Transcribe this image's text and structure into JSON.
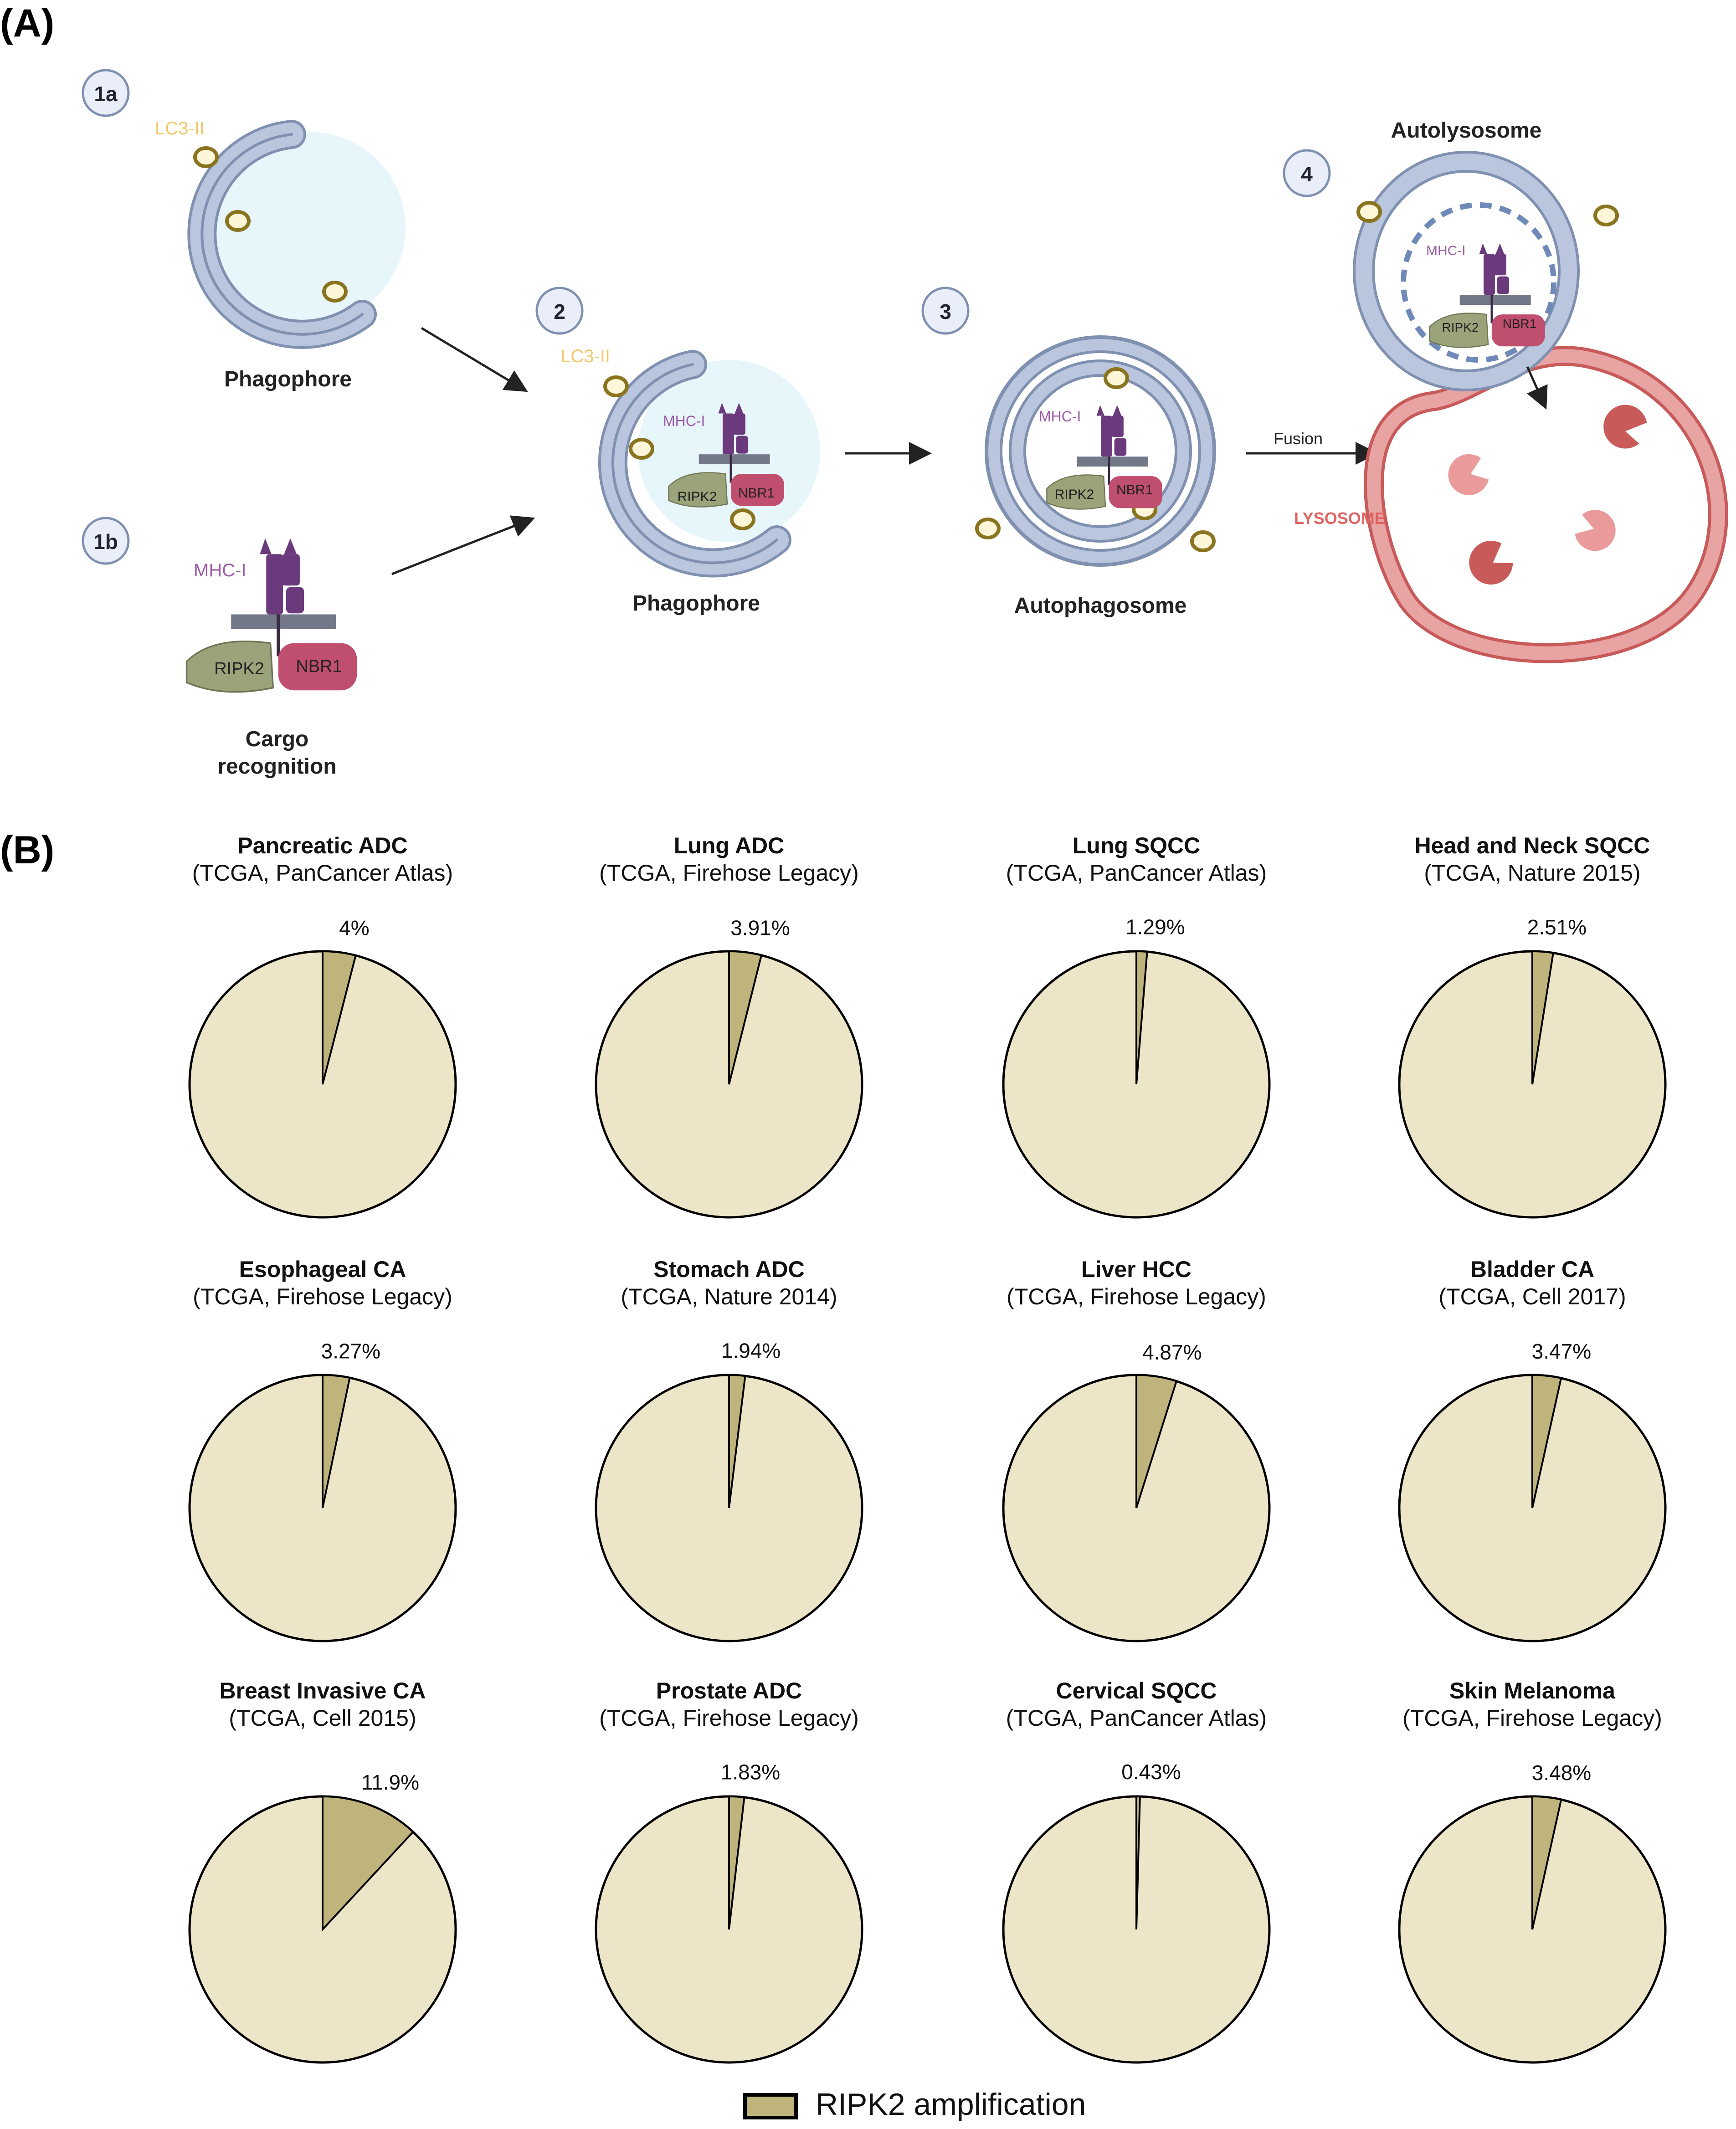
{
  "panel_a": {
    "label": "(A)",
    "steps": {
      "s1a": "1a",
      "s1b": "1b",
      "s2": "2",
      "s3": "3",
      "s4": "4"
    },
    "phagophore_label": "Phagophore",
    "phagophore2_label": "Phagophore",
    "autophagosome_label": "Autophagosome",
    "autolysosome_label": "Autolysosome",
    "lysosome_label": "LYSOSOME",
    "fusion_label": "Fusion",
    "cargo_label_line1": "Cargo",
    "cargo_label_line2": "recognition",
    "lc3": "LC3-II",
    "mhc": "MHC-I",
    "ripk2": "RIPK2",
    "nbr1": "NBR1"
  },
  "panel_b": {
    "label": "(B)",
    "legend": "RIPK2 amplification"
  },
  "colors": {
    "membrane": "#b9c6de",
    "membrane_edge": "#7f90b0",
    "lysosome": "#e8a3a3",
    "lysosome_edge": "#c95a5a",
    "mhc": "#6b3a7d",
    "ripk2": "#9aa37a",
    "nbr1": "#c04e6e",
    "lc3_fill": "#fdf6d8",
    "lc3_edge": "#8a7420",
    "lc3_text": "#f2c86a",
    "pie_base": "#ede5c7",
    "pie_slice": "#beb47c",
    "glow": "#e6f6fb"
  },
  "chart_data": {
    "type": "pie",
    "series_name": "RIPK2 amplification",
    "charts": [
      {
        "title": "Pancreatic ADC",
        "subtitle": "(TCGA, PanCancer Atlas)",
        "value": 4,
        "label": "4%"
      },
      {
        "title": "Lung ADC",
        "subtitle": "(TCGA, Firehose Legacy)",
        "value": 3.91,
        "label": "3.91%"
      },
      {
        "title": "Lung SQCC",
        "subtitle": "(TCGA, PanCancer Atlas)",
        "value": 1.29,
        "label": "1.29%"
      },
      {
        "title": "Head and Neck SQCC",
        "subtitle": "(TCGA, Nature 2015)",
        "value": 2.51,
        "label": "2.51%"
      },
      {
        "title": "Esophageal CA",
        "subtitle": "(TCGA, Firehose Legacy)",
        "value": 3.27,
        "label": "3.27%"
      },
      {
        "title": "Stomach ADC",
        "subtitle": "(TCGA, Nature 2014)",
        "value": 1.94,
        "label": "1.94%"
      },
      {
        "title": "Liver HCC",
        "subtitle": "(TCGA, Firehose Legacy)",
        "value": 4.87,
        "label": "4.87%"
      },
      {
        "title": "Bladder CA",
        "subtitle": "(TCGA, Cell 2017)",
        "value": 3.47,
        "label": "3.47%"
      },
      {
        "title": "Breast Invasive CA",
        "subtitle": "(TCGA, Cell 2015)",
        "value": 11.9,
        "label": "11.9%"
      },
      {
        "title": "Prostate ADC",
        "subtitle": "(TCGA, Firehose Legacy)",
        "value": 1.83,
        "label": "1.83%"
      },
      {
        "title": "Cervical SQCC",
        "subtitle": "(TCGA, PanCancer Atlas)",
        "value": 0.43,
        "label": "0.43%"
      },
      {
        "title": "Skin Melanoma",
        "subtitle": "(TCGA, Firehose Legacy)",
        "value": 3.48,
        "label": "3.48%"
      }
    ]
  }
}
